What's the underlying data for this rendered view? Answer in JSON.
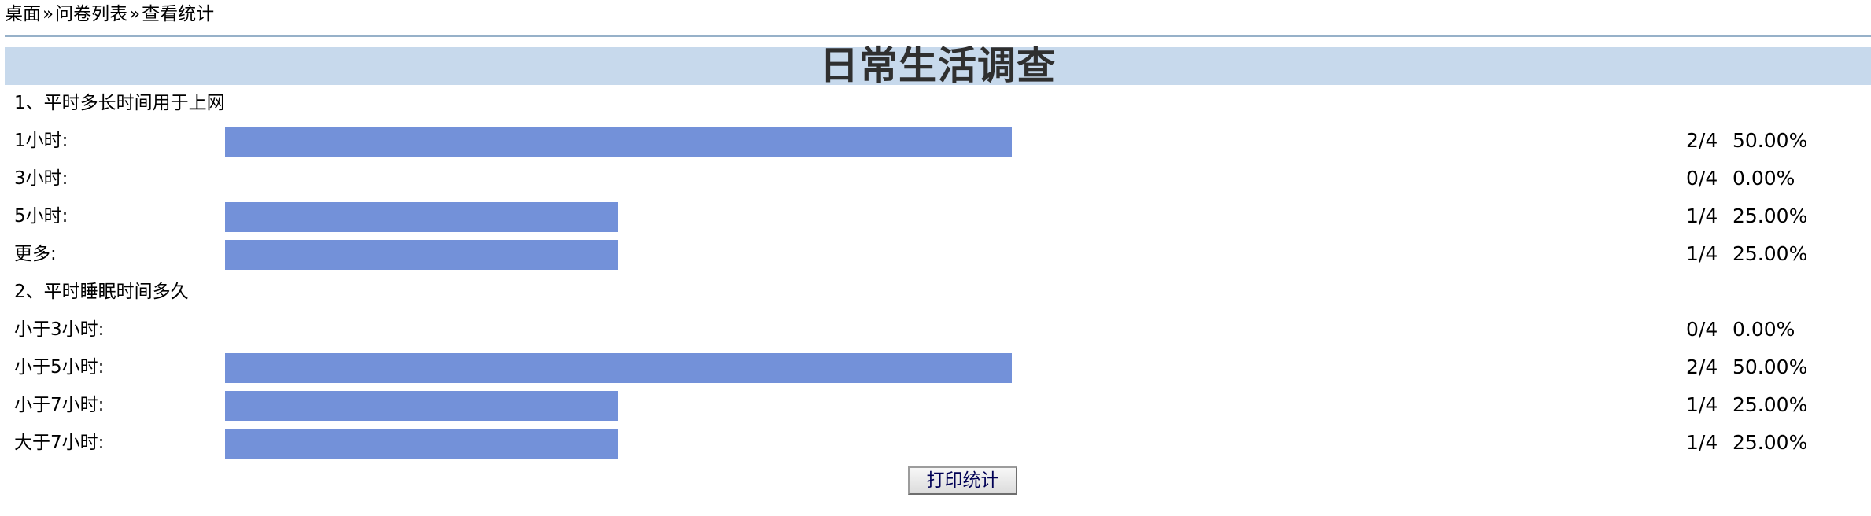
{
  "breadcrumb": {
    "items": [
      "桌面",
      "问卷列表",
      "查看统计"
    ],
    "separator": "»"
  },
  "survey": {
    "title": "日常生活调查",
    "bar_color": "#7391d9",
    "header_band_color": "#c7d9ec",
    "questions": [
      {
        "text": "1、平时多长时间用于上网",
        "options": [
          {
            "label": "1小时:",
            "count_text": "2/4",
            "pct_text": "50.00%",
            "fraction": 0.5
          },
          {
            "label": "3小时:",
            "count_text": "0/4",
            "pct_text": "0.00%",
            "fraction": 0
          },
          {
            "label": "5小时:",
            "count_text": "1/4",
            "pct_text": "25.00%",
            "fraction": 0.25
          },
          {
            "label": "更多:",
            "count_text": "1/4",
            "pct_text": "25.00%",
            "fraction": 0.25
          }
        ]
      },
      {
        "text": "2、平时睡眠时间多久",
        "options": [
          {
            "label": "小于3小时:",
            "count_text": "0/4",
            "pct_text": "0.00%",
            "fraction": 0
          },
          {
            "label": "小于5小时:",
            "count_text": "2/4",
            "pct_text": "50.00%",
            "fraction": 0.5
          },
          {
            "label": "小于7小时:",
            "count_text": "1/4",
            "pct_text": "25.00%",
            "fraction": 0.25
          },
          {
            "label": "大于7小时:",
            "count_text": "1/4",
            "pct_text": "25.00%",
            "fraction": 0.25
          }
        ]
      }
    ]
  },
  "actions": {
    "print_label": "打印统计"
  }
}
